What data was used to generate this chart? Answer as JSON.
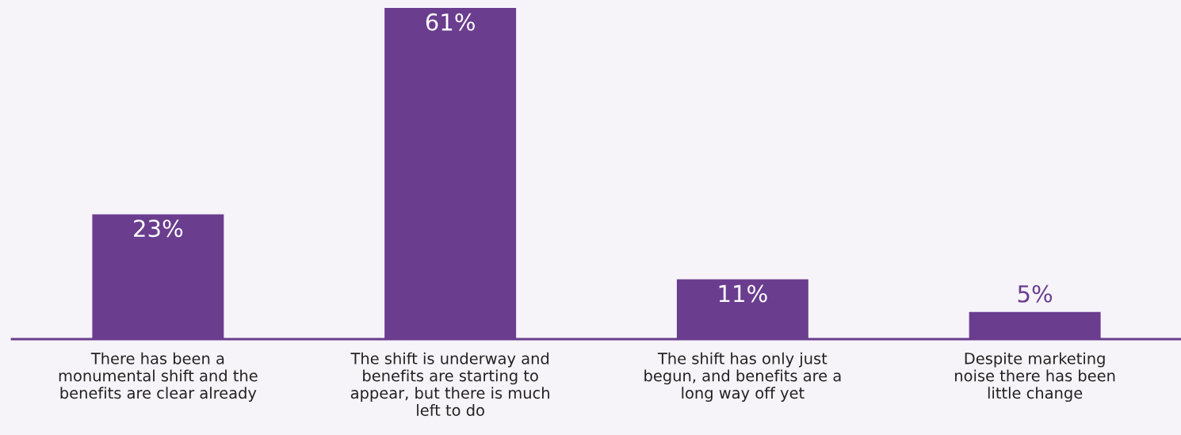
{
  "chart_data": {
    "type": "bar",
    "categories": [
      "There has been a\nmonumental shift and the\nbenefits are clear already",
      "The shift is underway and\nbenefits are starting to\nappear, but there is much\nleft to do",
      "The shift has only just\nbegun, and benefits are a\nlong way off yet",
      "Despite marketing\nnoise there has been\nlittle change"
    ],
    "values": [
      23,
      61,
      11,
      5
    ],
    "value_labels": [
      "23%",
      "61%",
      "11%",
      "5%"
    ],
    "color": "#6a3d8f",
    "grid": false,
    "legend": false
  }
}
